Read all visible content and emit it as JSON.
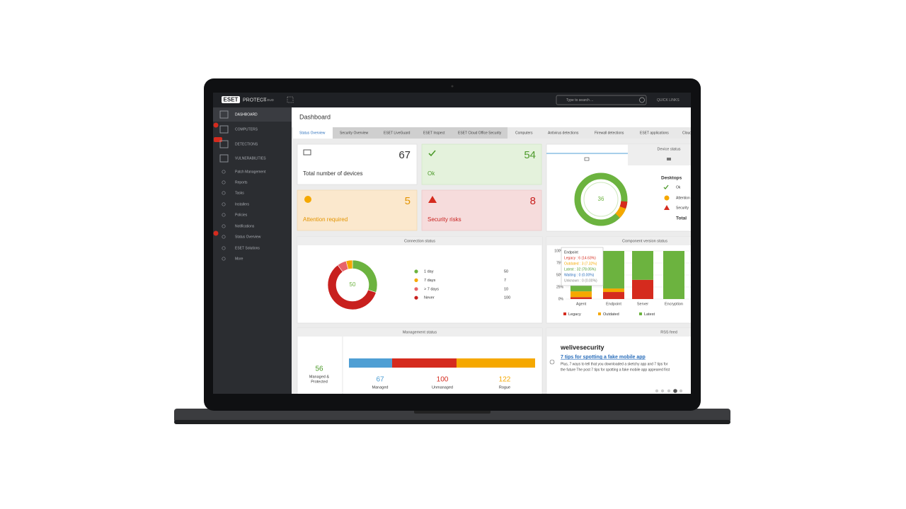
{
  "header": {
    "logo": "ESET",
    "product": "PROTECT",
    "edition": "CLOUD",
    "search_placeholder": "Type to search ...",
    "quick_links": "QUICK LINKS"
  },
  "sidebar": {
    "items": [
      "DASHBOARD",
      "COMPUTERS",
      "DETECTIONS",
      "VULNERABILITIES",
      "Patch Management",
      "Reports",
      "Tasks",
      "Installers",
      "Policies",
      "Notifications",
      "Status Overview",
      "ESET Solutions",
      "More"
    ]
  },
  "page": {
    "title": "Dashboard",
    "tabs": [
      "Status Overview",
      "Security Overview",
      "ESET LiveGuard",
      "ESET Inspect",
      "ESET Cloud Office Security",
      "Computers",
      "Antivirus detections",
      "Firewall detections",
      "ESET applications",
      "Cloud"
    ]
  },
  "tiles": [
    {
      "value": 67,
      "label": "Total number of devices"
    },
    {
      "value": 54,
      "label": "Ok"
    },
    {
      "value": 5,
      "label": "Attention required"
    },
    {
      "value": 8,
      "label": "Security risks"
    }
  ],
  "device_status": {
    "title": "Device status",
    "center": 36,
    "group": "Desktops",
    "legend": [
      "Ok",
      "Attention",
      "Security"
    ],
    "total": "Total"
  },
  "connection_status": {
    "title": "Connection status",
    "center": 50,
    "legend": [
      {
        "name": "1 day",
        "value": 50,
        "color": "#6cb33f"
      },
      {
        "name": "7 days",
        "value": 7,
        "color": "#f5a800"
      },
      {
        "name": "> 7 days",
        "value": 10,
        "color": "#e8646a"
      },
      {
        "name": "Never",
        "value": 100,
        "color": "#c8201e"
      }
    ]
  },
  "component_version_status": {
    "title": "Component version status",
    "yticks": [
      {
        "value": 100,
        "label": "100%"
      },
      {
        "value": 75,
        "label": "75%"
      },
      {
        "value": 50,
        "label": "50%"
      },
      {
        "value": 25,
        "label": "25%"
      },
      {
        "value": 0,
        "label": "0%"
      }
    ],
    "categories": [
      "Agent",
      "Endpoint",
      "Server",
      "Encryption"
    ],
    "series": [
      {
        "name": "Legacy",
        "color": "#d52b1e",
        "values": [
          4,
          14.63,
          40,
          0
        ]
      },
      {
        "name": "Outdated",
        "color": "#f5a800",
        "values": [
          12,
          7.32,
          0,
          0
        ]
      },
      {
        "name": "Latest",
        "color": "#6cb33f",
        "values": [
          84,
          78.05,
          60,
          100
        ]
      }
    ],
    "tooltip": {
      "title": "Endpoint",
      "lines": [
        "Legacy : 6 (14.63%)",
        "Outdated : 3 (7.32%)",
        "Latest : 32 (78.05%)",
        "Waiting : 0 (0.00%)",
        "Unknown : 0 (0.00%)"
      ]
    }
  },
  "management_status": {
    "title": "Management status",
    "protected": {
      "value": 56,
      "label": [
        "Managed &",
        "Protected"
      ]
    },
    "segments": [
      {
        "name": "Managed",
        "value": 67,
        "color": "#4f9fd4"
      },
      {
        "name": "Unmanaged",
        "value": 100,
        "color": "#d52b1e"
      },
      {
        "name": "Rogue",
        "value": 122,
        "color": "#f5a800"
      }
    ]
  },
  "rss_feed": {
    "title": "RSS feed",
    "source": "welivesecurity",
    "headline": "7 tips for spotting a fake mobile app",
    "snippet": [
      "Plus, 7 ways to tell that you downloaded a sketchy app and 7 tips for",
      "the future The post 7 tips for spotting a fake mobile app appeared first"
    ]
  }
}
